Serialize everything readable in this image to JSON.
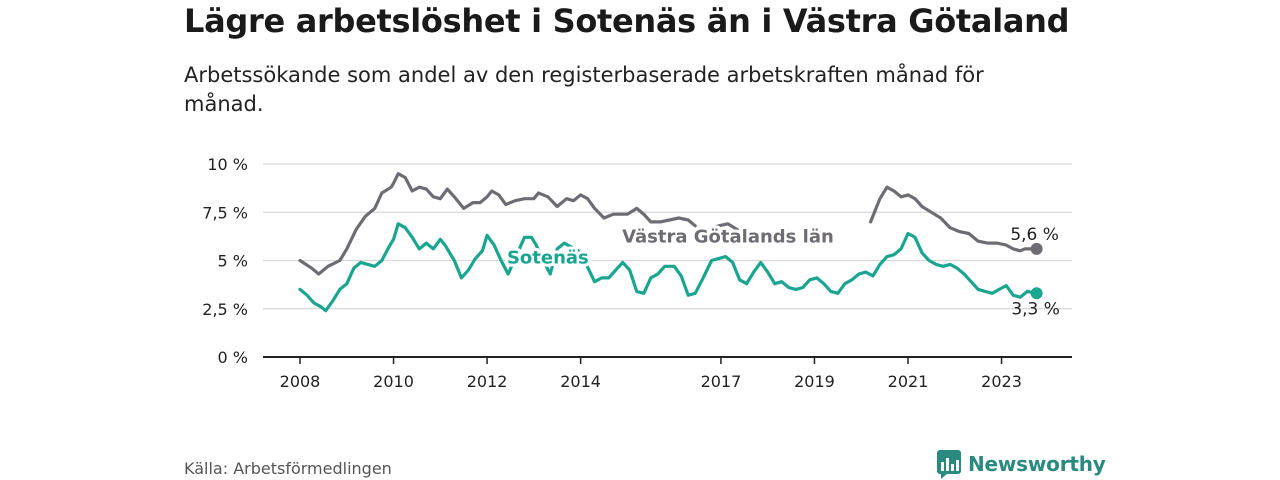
{
  "header": {
    "title": "Lägre arbetslöshet i Sotenäs än i Västra Götaland",
    "subtitle": "Arbetssökande som andel av den registerbaserade arbetskraften månad för månad."
  },
  "footer": {
    "source": "Källa: Arbetsförmedlingen",
    "brand": "Newsworthy"
  },
  "colors": {
    "vg": "#6e6c72",
    "sotenas": "#1aa591",
    "grid": "#d7d7d7",
    "axis": "#222222",
    "brand": "#2a8a80"
  },
  "chart_data": {
    "type": "line",
    "title": "Lägre arbetslöshet i Sotenäs än i Västra Götaland",
    "xlabel": "",
    "ylabel": "",
    "ylim": [
      0,
      10
    ],
    "xlim": [
      2008.0,
      2023.75
    ],
    "x_ticks": [
      {
        "value": 2008,
        "label": "2008"
      },
      {
        "value": 2010,
        "label": "2010"
      },
      {
        "value": 2012,
        "label": "2012"
      },
      {
        "value": 2014,
        "label": "2014"
      },
      {
        "value": 2017,
        "label": "2017"
      },
      {
        "value": 2019,
        "label": "2019"
      },
      {
        "value": 2021,
        "label": "2021"
      },
      {
        "value": 2023,
        "label": "2023"
      }
    ],
    "y_ticks": [
      {
        "value": 0,
        "label": "0 %"
      },
      {
        "value": 2.5,
        "label": "2,5 %"
      },
      {
        "value": 5,
        "label": "5 %"
      },
      {
        "value": 7.5,
        "label": "7,5 %"
      },
      {
        "value": 10,
        "label": "10 %"
      }
    ],
    "series": [
      {
        "name": "Västra Götalands län",
        "color_key": "vg",
        "end_label": "5,6 %",
        "points": [
          [
            2008.0,
            5.0
          ],
          [
            2008.25,
            4.6
          ],
          [
            2008.4,
            4.3
          ],
          [
            2008.6,
            4.7
          ],
          [
            2008.85,
            5.0
          ],
          [
            2009.0,
            5.6
          ],
          [
            2009.2,
            6.6
          ],
          [
            2009.4,
            7.3
          ],
          [
            2009.6,
            7.7
          ],
          [
            2009.75,
            8.5
          ],
          [
            2009.95,
            8.8
          ],
          [
            2010.0,
            9.0
          ],
          [
            2010.1,
            9.5
          ],
          [
            2010.25,
            9.3
          ],
          [
            2010.4,
            8.6
          ],
          [
            2010.55,
            8.8
          ],
          [
            2010.7,
            8.7
          ],
          [
            2010.85,
            8.3
          ],
          [
            2011.0,
            8.2
          ],
          [
            2011.15,
            8.7
          ],
          [
            2011.3,
            8.3
          ],
          [
            2011.5,
            7.7
          ],
          [
            2011.7,
            8.0
          ],
          [
            2011.85,
            8.0
          ],
          [
            2012.0,
            8.3
          ],
          [
            2012.1,
            8.6
          ],
          [
            2012.25,
            8.4
          ],
          [
            2012.4,
            7.9
          ],
          [
            2012.6,
            8.1
          ],
          [
            2012.8,
            8.2
          ],
          [
            2013.0,
            8.2
          ],
          [
            2013.1,
            8.5
          ],
          [
            2013.3,
            8.3
          ],
          [
            2013.5,
            7.8
          ],
          [
            2013.7,
            8.2
          ],
          [
            2013.85,
            8.1
          ],
          [
            2014.0,
            8.4
          ],
          [
            2014.15,
            8.2
          ],
          [
            2014.3,
            7.7
          ],
          [
            2014.5,
            7.2
          ],
          [
            2014.7,
            7.4
          ],
          [
            2014.85,
            7.4
          ],
          [
            2015.0,
            7.4
          ],
          [
            2015.2,
            7.7
          ],
          [
            2015.35,
            7.4
          ],
          [
            2015.5,
            7.0
          ],
          [
            2015.7,
            7.0
          ],
          [
            2015.9,
            7.1
          ],
          [
            2016.1,
            7.2
          ],
          [
            2016.3,
            7.1
          ],
          [
            2016.45,
            6.8
          ]
        ],
        "points2": [
          [
            2016.75,
            6.6
          ],
          [
            2016.95,
            6.8
          ],
          [
            2017.15,
            6.9
          ],
          [
            2017.35,
            6.6
          ]
        ],
        "points3": [
          [
            2020.2,
            7.0
          ],
          [
            2020.4,
            8.2
          ],
          [
            2020.55,
            8.8
          ],
          [
            2020.7,
            8.6
          ],
          [
            2020.85,
            8.3
          ],
          [
            2021.0,
            8.4
          ],
          [
            2021.15,
            8.2
          ],
          [
            2021.3,
            7.8
          ],
          [
            2021.5,
            7.5
          ],
          [
            2021.7,
            7.2
          ],
          [
            2021.9,
            6.7
          ],
          [
            2022.1,
            6.5
          ],
          [
            2022.3,
            6.4
          ],
          [
            2022.5,
            6.0
          ],
          [
            2022.7,
            5.9
          ],
          [
            2022.9,
            5.9
          ],
          [
            2023.1,
            5.8
          ],
          [
            2023.25,
            5.6
          ],
          [
            2023.4,
            5.5
          ],
          [
            2023.5,
            5.6
          ],
          [
            2023.75,
            5.6
          ]
        ]
      },
      {
        "name": "Sotenäs",
        "color_key": "sotenas",
        "end_label": "3,3 %",
        "points": [
          [
            2008.0,
            3.5
          ],
          [
            2008.15,
            3.2
          ],
          [
            2008.3,
            2.8
          ],
          [
            2008.45,
            2.6
          ],
          [
            2008.55,
            2.4
          ],
          [
            2008.7,
            2.9
          ],
          [
            2008.85,
            3.5
          ],
          [
            2009.0,
            3.8
          ],
          [
            2009.15,
            4.6
          ],
          [
            2009.3,
            4.9
          ],
          [
            2009.45,
            4.8
          ],
          [
            2009.6,
            4.7
          ],
          [
            2009.75,
            5.0
          ],
          [
            2009.9,
            5.7
          ],
          [
            2010.0,
            6.1
          ],
          [
            2010.1,
            6.9
          ],
          [
            2010.25,
            6.7
          ],
          [
            2010.4,
            6.2
          ],
          [
            2010.55,
            5.6
          ],
          [
            2010.7,
            5.9
          ],
          [
            2010.85,
            5.6
          ],
          [
            2011.0,
            6.1
          ],
          [
            2011.1,
            5.8
          ],
          [
            2011.3,
            5.0
          ],
          [
            2011.45,
            4.1
          ],
          [
            2011.6,
            4.5
          ],
          [
            2011.75,
            5.1
          ],
          [
            2011.9,
            5.5
          ],
          [
            2012.0,
            6.3
          ],
          [
            2012.15,
            5.8
          ],
          [
            2012.3,
            5.0
          ],
          [
            2012.45,
            4.3
          ],
          [
            2012.6,
            5.1
          ],
          [
            2012.8,
            6.2
          ],
          [
            2012.95,
            6.2
          ],
          [
            2013.05,
            5.8
          ],
          [
            2013.2,
            5.0
          ],
          [
            2013.35,
            4.3
          ],
          [
            2013.5,
            5.6
          ],
          [
            2013.65,
            5.9
          ],
          [
            2013.8,
            5.7
          ],
          [
            2013.95,
            5.5
          ],
          [
            2014.1,
            4.9
          ],
          [
            2014.3,
            3.9
          ],
          [
            2014.45,
            4.1
          ],
          [
            2014.6,
            4.1
          ],
          [
            2014.75,
            4.5
          ],
          [
            2014.9,
            4.9
          ],
          [
            2015.05,
            4.5
          ],
          [
            2015.2,
            3.4
          ],
          [
            2015.35,
            3.3
          ],
          [
            2015.5,
            4.1
          ],
          [
            2015.65,
            4.3
          ],
          [
            2015.8,
            4.7
          ],
          [
            2016.0,
            4.7
          ],
          [
            2016.15,
            4.2
          ],
          [
            2016.3,
            3.2
          ],
          [
            2016.45,
            3.3
          ],
          [
            2016.6,
            4.0
          ],
          [
            2016.8,
            5.0
          ],
          [
            2016.95,
            5.1
          ],
          [
            2017.1,
            5.2
          ],
          [
            2017.25,
            4.9
          ],
          [
            2017.4,
            4.0
          ],
          [
            2017.55,
            3.8
          ],
          [
            2017.7,
            4.4
          ],
          [
            2017.85,
            4.9
          ],
          [
            2018.0,
            4.4
          ],
          [
            2018.15,
            3.8
          ],
          [
            2018.3,
            3.9
          ],
          [
            2018.45,
            3.6
          ],
          [
            2018.6,
            3.5
          ],
          [
            2018.75,
            3.6
          ],
          [
            2018.9,
            4.0
          ],
          [
            2019.05,
            4.1
          ],
          [
            2019.2,
            3.8
          ],
          [
            2019.35,
            3.4
          ],
          [
            2019.5,
            3.3
          ],
          [
            2019.65,
            3.8
          ],
          [
            2019.8,
            4.0
          ],
          [
            2019.95,
            4.3
          ],
          [
            2020.1,
            4.4
          ],
          [
            2020.25,
            4.2
          ],
          [
            2020.4,
            4.8
          ],
          [
            2020.55,
            5.2
          ],
          [
            2020.7,
            5.3
          ],
          [
            2020.85,
            5.6
          ],
          [
            2021.0,
            6.4
          ],
          [
            2021.15,
            6.2
          ],
          [
            2021.3,
            5.4
          ],
          [
            2021.45,
            5.0
          ],
          [
            2021.6,
            4.8
          ],
          [
            2021.75,
            4.7
          ],
          [
            2021.9,
            4.8
          ],
          [
            2022.05,
            4.6
          ],
          [
            2022.2,
            4.3
          ],
          [
            2022.35,
            3.9
          ],
          [
            2022.5,
            3.5
          ],
          [
            2022.65,
            3.4
          ],
          [
            2022.8,
            3.3
          ],
          [
            2022.95,
            3.5
          ],
          [
            2023.1,
            3.7
          ],
          [
            2023.25,
            3.2
          ],
          [
            2023.4,
            3.1
          ],
          [
            2023.55,
            3.4
          ],
          [
            2023.75,
            3.3
          ]
        ]
      }
    ],
    "annotations": [
      {
        "series": "Sotenäs",
        "text": "Sotenäs",
        "x": 2013.3,
        "y": 5.2
      },
      {
        "series": "Västra Götalands län",
        "text": "Västra Götalands län",
        "x": 2017.15,
        "y": 6.3
      }
    ]
  }
}
